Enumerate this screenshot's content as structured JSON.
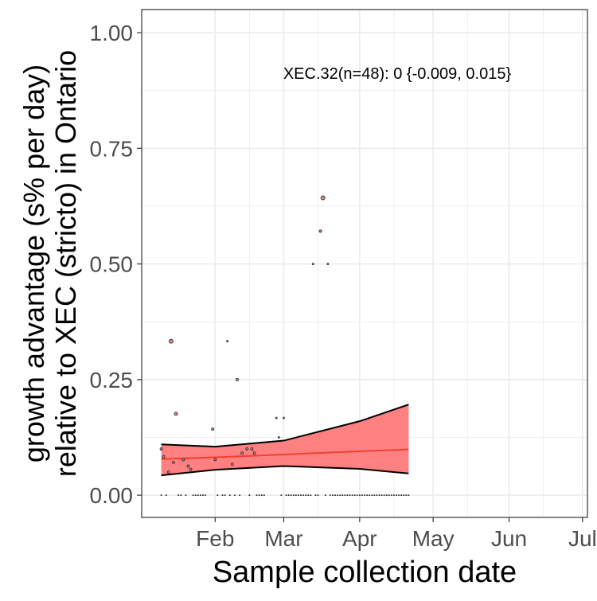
{
  "chart_data": {
    "type": "scatter",
    "title": "",
    "xlabel": "Sample collection date",
    "ylabel_line1": "growth advantage (s% per day)",
    "ylabel_line2": "relative to XEC (stricto) in Ontario",
    "annotation": "XEC.32(n=48): 0 {-0.009, 0.015}",
    "x_axis": {
      "type": "date",
      "min": "2025-01-02",
      "max": "2025-07-03",
      "ticks": [
        "2025-02-01",
        "2025-03-01",
        "2025-04-01",
        "2025-05-01",
        "2025-06-01",
        "2025-07-01"
      ],
      "tick_labels": [
        "Feb",
        "Mar",
        "Apr",
        "May",
        "Jun",
        "Jul"
      ],
      "minor_ticks": [
        "2025-02-15",
        "2025-03-15",
        "2025-04-15",
        "2025-05-15",
        "2025-06-15"
      ]
    },
    "y_axis": {
      "min": -0.048,
      "max": 1.05,
      "ticks": [
        0,
        0.25,
        0.5,
        0.75,
        1.0
      ],
      "tick_labels": [
        "0.00",
        "0.25",
        "0.50",
        "0.75",
        "1.00"
      ],
      "minor_ticks": [
        0.125,
        0.375,
        0.625,
        0.875
      ]
    },
    "grid": true,
    "colors": {
      "points_fill": "#F08080",
      "points_stroke": "#333333",
      "ribbon_fill": "#FF8080",
      "ribbon_stroke": "#000000",
      "fit_line": "#F04030",
      "grid": "#EBEBEB",
      "panel_border": "#333333"
    },
    "points": [
      {
        "date": "2025-01-10",
        "value": 0.1,
        "size": 1.5
      },
      {
        "date": "2025-01-11",
        "value": 0.083,
        "size": 1.5
      },
      {
        "date": "2025-01-13",
        "value": 0.05,
        "size": 1.5
      },
      {
        "date": "2025-01-14",
        "value": 0.333,
        "size": 2.5
      },
      {
        "date": "2025-01-15",
        "value": 0.071,
        "size": 1.5
      },
      {
        "date": "2025-01-16",
        "value": 0.176,
        "size": 2
      },
      {
        "date": "2025-01-19",
        "value": 0.077,
        "size": 1.5
      },
      {
        "date": "2025-01-21",
        "value": 0.063,
        "size": 1.5
      },
      {
        "date": "2025-01-22",
        "value": 0.056,
        "size": 1.5
      },
      {
        "date": "2025-01-31",
        "value": 0.143,
        "size": 1.5
      },
      {
        "date": "2025-02-01",
        "value": 0.077,
        "size": 1.5
      },
      {
        "date": "2025-02-06",
        "value": 0.333,
        "size": 1
      },
      {
        "date": "2025-02-08",
        "value": 0.067,
        "size": 1.5
      },
      {
        "date": "2025-02-10",
        "value": 0.25,
        "size": 1.5
      },
      {
        "date": "2025-02-12",
        "value": 0.091,
        "size": 1.5
      },
      {
        "date": "2025-02-14",
        "value": 0.1,
        "size": 1.5
      },
      {
        "date": "2025-02-16",
        "value": 0.1,
        "size": 1.5
      },
      {
        "date": "2025-02-17",
        "value": 0.091,
        "size": 1.5
      },
      {
        "date": "2025-02-26",
        "value": 0.167,
        "size": 1
      },
      {
        "date": "2025-02-27",
        "value": 0.125,
        "size": 1
      },
      {
        "date": "2025-03-01",
        "value": 0.167,
        "size": 1
      },
      {
        "date": "2025-03-13",
        "value": 0.5,
        "size": 1
      },
      {
        "date": "2025-03-16",
        "value": 0.571,
        "size": 1.5
      },
      {
        "date": "2025-03-17",
        "value": 0.643,
        "size": 2.5
      },
      {
        "date": "2025-03-19",
        "value": 0.5,
        "size": 1
      }
    ],
    "zero_point_dates": [
      "2025-01-10",
      "2025-01-12",
      "2025-01-17",
      "2025-01-18",
      "2025-01-20",
      "2025-01-23",
      "2025-01-24",
      "2025-01-25",
      "2025-01-26",
      "2025-01-27",
      "2025-01-28",
      "2025-02-02",
      "2025-02-04",
      "2025-02-05",
      "2025-02-07",
      "2025-02-09",
      "2025-02-11",
      "2025-02-15",
      "2025-02-18",
      "2025-02-19",
      "2025-02-20",
      "2025-02-21",
      "2025-02-28",
      "2025-03-02",
      "2025-03-03",
      "2025-03-04",
      "2025-03-05",
      "2025-03-06",
      "2025-03-07",
      "2025-03-08",
      "2025-03-09",
      "2025-03-10",
      "2025-03-11",
      "2025-03-12",
      "2025-03-14",
      "2025-03-15",
      "2025-03-18",
      "2025-03-20",
      "2025-03-21",
      "2025-03-22",
      "2025-03-23",
      "2025-03-24",
      "2025-03-25",
      "2025-03-26",
      "2025-03-27",
      "2025-03-28",
      "2025-03-29",
      "2025-03-30",
      "2025-03-31",
      "2025-04-01",
      "2025-04-02",
      "2025-04-03",
      "2025-04-04",
      "2025-04-05",
      "2025-04-06",
      "2025-04-07",
      "2025-04-08",
      "2025-04-09",
      "2025-04-10",
      "2025-04-11",
      "2025-04-12",
      "2025-04-13",
      "2025-04-14",
      "2025-04-15",
      "2025-04-16",
      "2025-04-17",
      "2025-04-18",
      "2025-04-19",
      "2025-04-20",
      "2025-04-21"
    ],
    "fit": {
      "dates": [
        "2025-01-10",
        "2025-02-01",
        "2025-03-01",
        "2025-04-01",
        "2025-04-21"
      ],
      "fit": [
        0.078,
        0.082,
        0.088,
        0.095,
        0.099
      ],
      "upper": [
        0.11,
        0.105,
        0.118,
        0.16,
        0.196
      ],
      "lower": [
        0.043,
        0.055,
        0.063,
        0.057,
        0.047
      ]
    }
  }
}
